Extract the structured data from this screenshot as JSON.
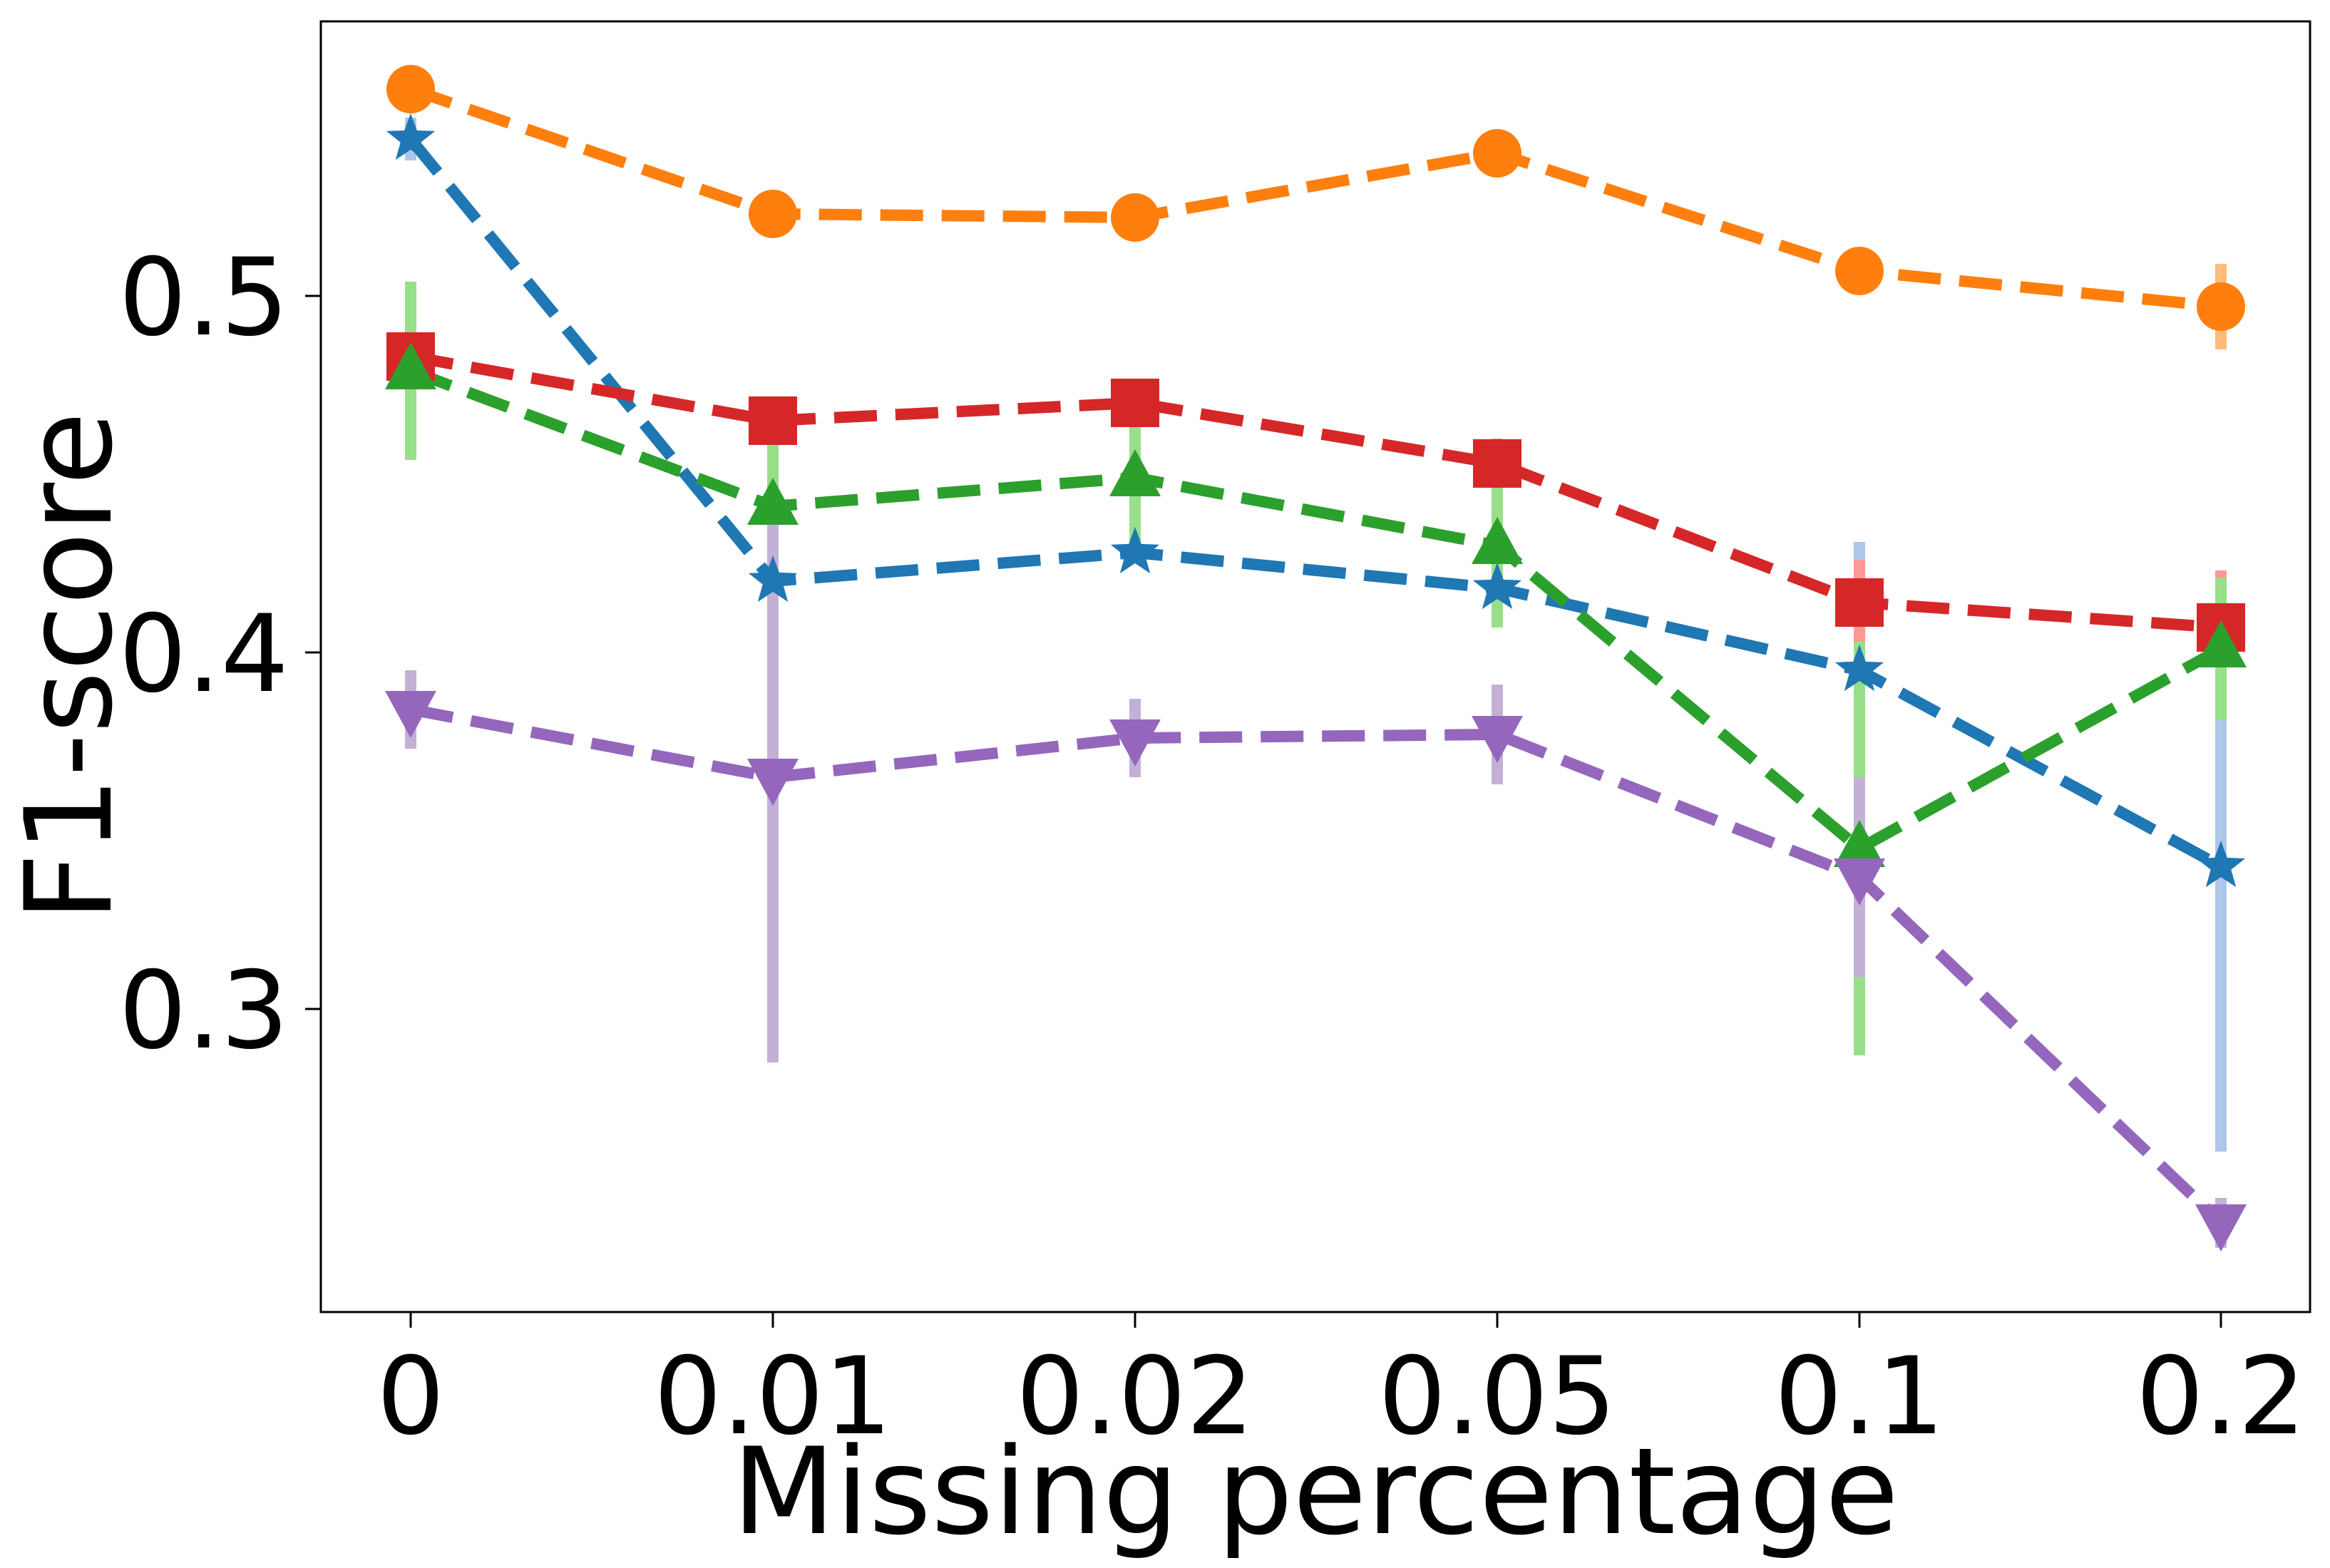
{
  "chart_data": {
    "type": "line",
    "title": "",
    "xlabel": "Missing percentage",
    "ylabel": "F1-score",
    "categories": [
      "0",
      "0.01",
      "0.02",
      "0.05",
      "0.1",
      "0.2"
    ],
    "ylim": [
      0.215,
      0.577
    ],
    "yticks": [
      0.3,
      0.4,
      0.5
    ],
    "ytick_labels": [
      "0.3",
      "0.4",
      "0.5"
    ],
    "grid": false,
    "legend": false,
    "series": [
      {
        "name": "orange-circle",
        "color": "#ff7f0e",
        "error_color": "#ffbb78",
        "marker": "circle",
        "values": [
          0.558,
          0.523,
          0.522,
          0.54,
          0.507,
          0.497
        ],
        "errors": [
          0.0,
          0.0,
          0.0,
          0.0,
          0.0,
          0.012
        ]
      },
      {
        "name": "blue-star",
        "color": "#1f77b4",
        "error_color": "#aec7e8",
        "marker": "star",
        "values": [
          0.544,
          0.42,
          0.428,
          0.418,
          0.395,
          0.34
        ],
        "errors": [
          0.006,
          0.0,
          0.0,
          0.0,
          0.036,
          0.08
        ]
      },
      {
        "name": "red-square",
        "color": "#d62728",
        "error_color": "#ff9896",
        "marker": "square",
        "values": [
          0.483,
          0.465,
          0.47,
          0.453,
          0.414,
          0.407
        ],
        "errors": [
          0.0,
          0.0,
          0.0,
          0.007,
          0.012,
          0.016
        ]
      },
      {
        "name": "green-triangle",
        "color": "#2ca02c",
        "error_color": "#98df8a",
        "marker": "triangle-up",
        "values": [
          0.479,
          0.441,
          0.449,
          0.43,
          0.345,
          0.401
        ],
        "errors": [
          0.025,
          0.02,
          0.018,
          0.023,
          0.058,
          0.02
        ]
      },
      {
        "name": "purple-triangle-down",
        "color": "#9467bd",
        "error_color": "#c5b0d5",
        "marker": "triangle-down",
        "values": [
          0.384,
          0.365,
          0.376,
          0.377,
          0.337,
          0.24
        ],
        "errors": [
          0.011,
          0.08,
          0.011,
          0.014,
          0.028,
          0.007
        ]
      }
    ]
  }
}
